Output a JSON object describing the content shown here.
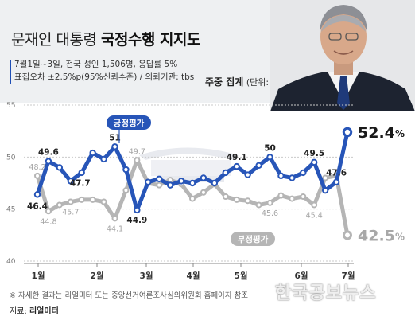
{
  "header": {
    "title_prefix": "문재인 대통령",
    "title_bold": "국정수행 지지도",
    "info_line1": "7월1일~3일, 전국 성인 1,506명, 응답률 5%",
    "info_line2": "표집오차 ±2.5%p(95%신뢰수준) / 의뢰기관: tbs",
    "unit_bold": "주중 집계",
    "unit_suffix": "(단위: %)"
  },
  "colors": {
    "approve": "#2755b8",
    "disapprove": "#b5b5b5",
    "header_bg": "#eef0f2"
  },
  "chart_data": {
    "type": "line",
    "ylim": [
      40,
      55
    ],
    "yticks": [
      "55",
      "50",
      "45",
      "40"
    ],
    "xticks": [
      "1월",
      "2월",
      "3월",
      "4월",
      "5월",
      "6월",
      "7월"
    ],
    "series": [
      {
        "name": "긍정평가",
        "values": [
          46.4,
          49.6,
          49.0,
          47.7,
          48.5,
          50.4,
          49.8,
          51.0,
          48.8,
          44.9,
          47.6,
          47.9,
          47.3,
          47.7,
          47.5,
          48.0,
          47.5,
          48.5,
          49.1,
          48.3,
          49.2,
          50.0,
          48.2,
          48.0,
          48.5,
          49.5,
          46.8,
          47.6,
          52.4
        ],
        "labels": [
          "46.4",
          "49.6",
          "",
          "47.7",
          "",
          "",
          "",
          "51",
          "",
          "44.9",
          "",
          "",
          "",
          "",
          "",
          "",
          "",
          "",
          "49.1",
          "",
          "",
          "50",
          "",
          "",
          "",
          "49.5",
          "",
          "47.6",
          "52.4"
        ]
      },
      {
        "name": "부정평가",
        "values": [
          48.2,
          44.8,
          45.4,
          45.7,
          45.9,
          45.9,
          45.7,
          44.1,
          46.8,
          49.7,
          47.5,
          47.3,
          47.8,
          47.4,
          46.0,
          46.6,
          47.4,
          46.2,
          45.9,
          45.8,
          45.4,
          45.6,
          46.3,
          46.0,
          46.2,
          45.4,
          48.0,
          48.2,
          42.5
        ],
        "labels": [
          "48.2",
          "44.8",
          "",
          "45.7",
          "",
          "",
          "",
          "44.1",
          "",
          "49.7",
          "",
          "",
          "",
          "",
          "",
          "",
          "",
          "",
          "",
          "",
          "",
          "45.6",
          "",
          "",
          "",
          "45.4",
          "",
          "",
          "42.5"
        ]
      }
    ],
    "end_unit": "%"
  },
  "footer": {
    "note": "※ 자세한 결과는 리얼미터 또는 중앙선거여론조사심의위원회 홈페이지 참조",
    "source_prefix": "지료:",
    "source_name": "리얼미터"
  },
  "watermark": "한국공보뉴스"
}
